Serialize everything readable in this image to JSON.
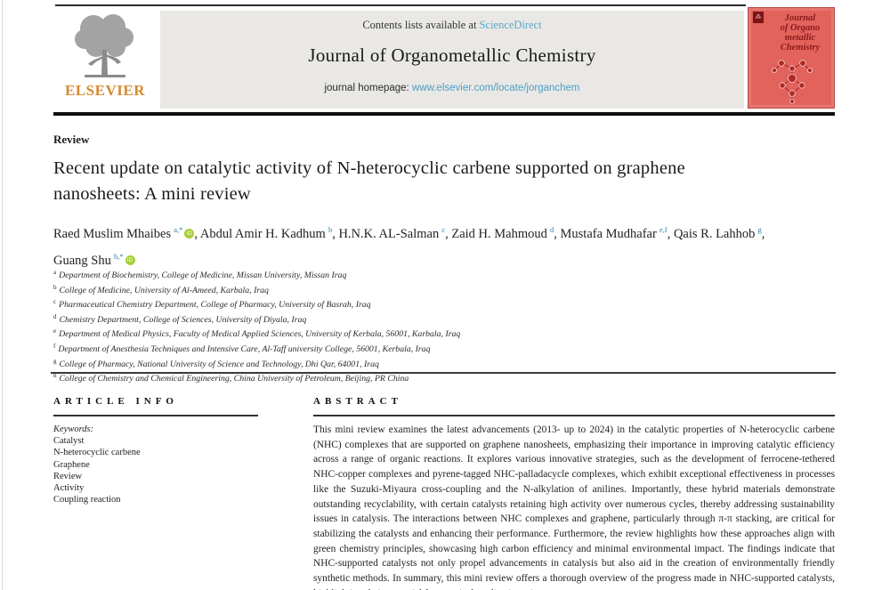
{
  "colors": {
    "link_blue": "#5ba7c7",
    "homepage_link_blue": "#4d9fc7",
    "superscript_teal": "#2f7fa6",
    "orcid_green": "#a6ce39",
    "elsevier_orange": "#d78b2e",
    "banner_gray": "#e9e8e5",
    "cover_red": "#e2625c",
    "cover_text_red": "#8c1a1a"
  },
  "header": {
    "contents_prefix": "Contents lists available at",
    "sciencedirect_link": "ScienceDirect",
    "journal_title": "Journal of Organometallic Chemistry",
    "homepage_label": "journal homepage:",
    "homepage_link": "www.elsevier.com/locate/jorganchem",
    "elsevier_wordmark": "ELSEVIER",
    "cover_els_mark": "⁂",
    "cover_title_lines": [
      "Journal",
      "of Organo",
      "metallic",
      "Chemistry"
    ]
  },
  "article": {
    "type_label": "Review",
    "title": "Recent update on catalytic activity of N-heterocyclic carbene supported on graphene nanosheets: A mini review",
    "authors": [
      {
        "name": "Raed Muslim Mhaibes",
        "sup": "a,*",
        "orcid": true
      },
      {
        "name": "Abdul Amir H. Kadhum",
        "sup": "b",
        "orcid": false
      },
      {
        "name": "H.N.K. AL-Salman",
        "sup": "c",
        "orcid": false
      },
      {
        "name": "Zaid H. Mahmoud",
        "sup": "d",
        "orcid": false
      },
      {
        "name": "Mustafa Mudhafar",
        "sup": "e,f",
        "orcid": false
      },
      {
        "name": "Qais R. Lahhob",
        "sup": "g",
        "orcid": false
      },
      {
        "name": "Guang Shu",
        "sup": "h,*",
        "orcid": true
      }
    ],
    "affiliations": [
      {
        "sup": "a",
        "text": "Department of Biochemistry, College of Medicine, Missan University, Missan Iraq"
      },
      {
        "sup": "b",
        "text": "College of Medicine, University of Al-Ameed, Karbala, Iraq"
      },
      {
        "sup": "c",
        "text": "Pharmaceutical Chemistry Department, College of Pharmacy, University of Basrah, Iraq"
      },
      {
        "sup": "d",
        "text": "Chemistry Department, College of Sciences, University of Diyala, Iraq"
      },
      {
        "sup": "e",
        "text": "Department of Medical Physics, Faculty of Medical Applied Sciences, University of Kerbala, 56001, Karbala, Iraq"
      },
      {
        "sup": "f",
        "text": "Department of Anesthesia Techniques and Intensive Care, Al-Taff university College, 56001, Kerbala, Iraq"
      },
      {
        "sup": "g",
        "text": "College of Pharmacy, National University of Science and Technology, Dhi Qar, 64001, Iraq"
      },
      {
        "sup": "h",
        "text": "College of Chemistry and Chemical Engineering, China University of Petroleum, Beijing, PR China"
      }
    ]
  },
  "article_info": {
    "heading": "ARTICLE INFO",
    "keywords_label": "Keywords:",
    "keywords": [
      "Catalyst",
      "N-heterocyclic carbene",
      "Graphene",
      "Review",
      "Activity",
      "Coupling reaction"
    ]
  },
  "abstract": {
    "heading": "ABSTRACT",
    "text": "This mini review examines the latest advancements (2013- up to 2024) in the catalytic properties of N-heterocyclic carbene (NHC) complexes that are supported on graphene nanosheets, emphasizing their importance in improving catalytic efficiency across a range of organic reactions. It explores various innovative strategies, such as the development of ferrocene-tethered NHC-copper complexes and pyrene-tagged NHC-palladacycle complexes, which exhibit exceptional effectiveness in processes like the Suzuki-Miyaura cross-coupling and the N-alkylation of anilines. Importantly, these hybrid materials demonstrate outstanding recyclability, with certain catalysts retaining high activity over numerous cycles, thereby addressing sustainability issues in catalysis. The interactions between NHC complexes and graphene, particularly through π-π stacking, are critical for stabilizing the catalysts and enhancing their performance. Furthermore, the review highlights how these approaches align with green chemistry principles, showcasing high carbon efficiency and minimal environmental impact. The findings indicate that NHC-supported catalysts not only propel advancements in catalysis but also aid in the creation of environmentally friendly synthetic methods. In summary, this mini review offers a thorough overview of the progress made in NHC-supported catalysts, highlighting their potential for practical applications, i"
  }
}
